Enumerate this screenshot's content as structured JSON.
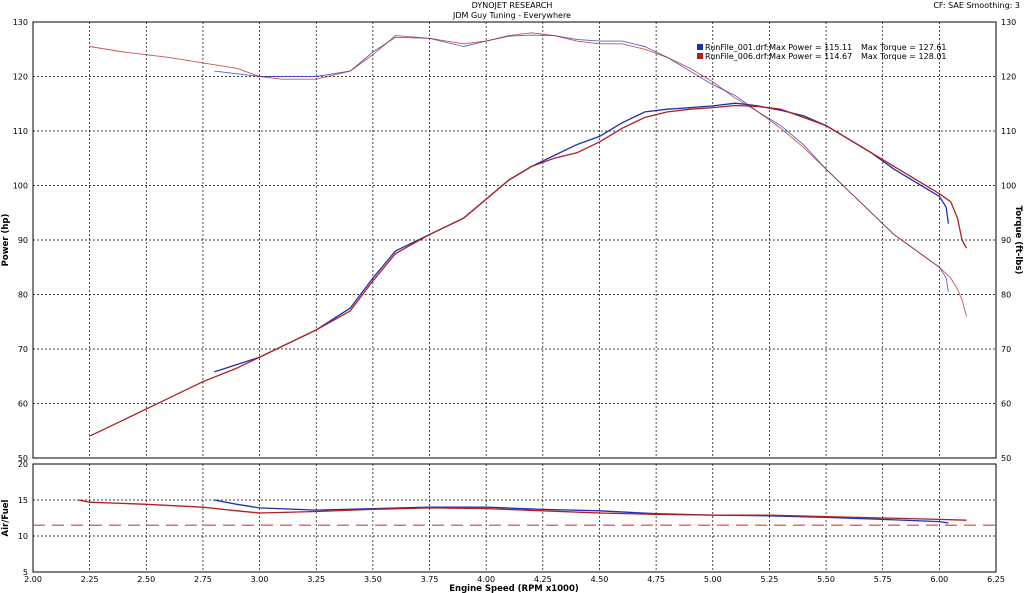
{
  "header": {
    "title": "DYNOJET RESEARCH",
    "subtitle": "JDM Guy Tuning - Everywhere",
    "meta": "CF: SAE  Smoothing: 3"
  },
  "legend": [
    {
      "text": "RunFile_001.drf:Max Power = 115.11",
      "torque_text": "Max Torque = 127.61",
      "color": "#1f2fb0"
    },
    {
      "text": "RunFile_006.drf:Max Power = 114.67",
      "torque_text": "Max Torque = 128.01",
      "color": "#b01f1f"
    }
  ],
  "chart_data": [
    {
      "type": "line",
      "title": "DYNOJET RESEARCH",
      "subtitle": "JDM Guy Tuning - Everywhere",
      "xlabel": "Engine Speed (RPM x1000)",
      "ylabel": "Power (hp)",
      "y2label": "Torque (ft-lbs)",
      "xlim": [
        2.0,
        6.25
      ],
      "ylim": [
        50,
        130
      ],
      "y2lim": [
        50,
        130
      ],
      "x_ticks": [
        "2.00",
        "2.25",
        "2.50",
        "2.75",
        "3.00",
        "3.25",
        "3.50",
        "3.75",
        "4.00",
        "4.25",
        "4.50",
        "4.75",
        "5.00",
        "5.25",
        "5.50",
        "5.75",
        "6.00",
        "6.25"
      ],
      "y_ticks": [
        "50",
        "60",
        "70",
        "80",
        "90",
        "100",
        "110",
        "120",
        "130"
      ],
      "y2_ticks": [
        "50",
        "60",
        "70",
        "80",
        "90",
        "100",
        "110",
        "120",
        "130"
      ],
      "grid": true,
      "legend_position": "top-right",
      "series": [
        {
          "name": "RunFile_001.drf",
          "quantity": "power",
          "color": "#1f2fb0",
          "x": [
            2.8,
            3.0,
            3.25,
            3.4,
            3.5,
            3.6,
            3.75,
            3.9,
            4.0,
            4.1,
            4.2,
            4.3,
            4.4,
            4.5,
            4.6,
            4.7,
            4.8,
            4.9,
            5.0,
            5.1,
            5.2,
            5.3,
            5.4,
            5.5,
            5.6,
            5.7,
            5.8,
            5.9,
            6.0,
            6.03,
            6.04
          ],
          "y": [
            65.8,
            68.5,
            73.5,
            77.5,
            83.0,
            88.0,
            91.0,
            94.0,
            97.5,
            101.0,
            103.5,
            105.5,
            107.5,
            109.0,
            111.5,
            113.5,
            114.0,
            114.3,
            114.6,
            115.1,
            114.6,
            113.8,
            112.8,
            111.0,
            108.5,
            106.0,
            103.0,
            100.5,
            98.0,
            96.0,
            93.0
          ]
        },
        {
          "name": "RunFile_006.drf",
          "quantity": "power",
          "color": "#b01f1f",
          "x": [
            2.25,
            2.4,
            2.5,
            2.6,
            2.75,
            2.9,
            3.0,
            3.25,
            3.4,
            3.5,
            3.6,
            3.75,
            3.9,
            4.0,
            4.1,
            4.2,
            4.3,
            4.4,
            4.5,
            4.6,
            4.7,
            4.8,
            4.9,
            5.0,
            5.1,
            5.2,
            5.3,
            5.4,
            5.5,
            5.6,
            5.7,
            5.8,
            5.9,
            6.0,
            6.05,
            6.08,
            6.1,
            6.12
          ],
          "y": [
            54.0,
            57.0,
            59.0,
            61.0,
            64.0,
            66.5,
            68.5,
            73.5,
            77.0,
            82.5,
            87.5,
            91.0,
            94.0,
            97.5,
            101.0,
            103.5,
            105.0,
            106.0,
            108.0,
            110.5,
            112.5,
            113.5,
            114.0,
            114.3,
            114.67,
            114.5,
            114.0,
            112.5,
            111.0,
            108.5,
            106.0,
            103.5,
            101.0,
            98.5,
            97.0,
            94.0,
            90.0,
            88.5
          ]
        },
        {
          "name": "RunFile_001.drf",
          "quantity": "torque",
          "color": "#1f2fb0",
          "x": [
            2.8,
            3.0,
            3.25,
            3.4,
            3.5,
            3.6,
            3.75,
            3.9,
            4.0,
            4.1,
            4.2,
            4.3,
            4.4,
            4.5,
            4.6,
            4.7,
            4.8,
            4.9,
            5.0,
            5.1,
            5.2,
            5.3,
            5.4,
            5.5,
            5.6,
            5.7,
            5.8,
            5.9,
            6.0,
            6.03,
            6.04
          ],
          "y": [
            121.0,
            120.0,
            120.0,
            121.0,
            124.5,
            127.2,
            127.0,
            125.5,
            126.5,
            127.4,
            127.6,
            127.5,
            126.8,
            126.5,
            126.5,
            125.5,
            123.5,
            121.0,
            118.5,
            116.5,
            113.5,
            111.0,
            107.5,
            103.0,
            99.0,
            95.0,
            91.0,
            88.0,
            85.0,
            83.0,
            80.5
          ]
        },
        {
          "name": "RunFile_006.drf",
          "quantity": "torque",
          "color": "#b01f1f",
          "x": [
            2.25,
            2.4,
            2.5,
            2.6,
            2.75,
            2.9,
            3.0,
            3.1,
            3.25,
            3.4,
            3.5,
            3.6,
            3.75,
            3.9,
            4.0,
            4.1,
            4.2,
            4.3,
            4.4,
            4.5,
            4.6,
            4.7,
            4.8,
            4.9,
            5.0,
            5.1,
            5.2,
            5.3,
            5.4,
            5.5,
            5.6,
            5.7,
            5.8,
            5.9,
            6.0,
            6.05,
            6.08,
            6.1,
            6.12
          ],
          "y": [
            125.5,
            124.5,
            124.0,
            123.5,
            122.5,
            121.5,
            120.0,
            119.5,
            119.5,
            121.0,
            124.0,
            127.5,
            127.0,
            126.0,
            126.5,
            127.5,
            128.01,
            127.5,
            126.5,
            126.0,
            126.0,
            125.0,
            123.5,
            121.5,
            119.0,
            116.0,
            113.5,
            110.5,
            107.0,
            103.0,
            99.0,
            95.0,
            91.0,
            88.0,
            85.0,
            83.0,
            81.0,
            79.0,
            76.0
          ]
        }
      ]
    },
    {
      "type": "line",
      "ylabel": "Air/Fuel",
      "xlabel": "Engine Speed (RPM x1000)",
      "xlim": [
        2.0,
        6.25
      ],
      "ylim": [
        5,
        20
      ],
      "y_ticks": [
        "5",
        "10",
        "15",
        "20"
      ],
      "grid": true,
      "reference_line": {
        "y": 11.5,
        "color": "#d04040",
        "style": "dashed"
      },
      "series": [
        {
          "name": "RunFile_001.drf",
          "quantity": "air_fuel",
          "color": "#1f2fb0",
          "x": [
            2.8,
            2.9,
            3.0,
            3.25,
            3.5,
            3.75,
            4.0,
            4.25,
            4.5,
            4.75,
            5.0,
            5.25,
            5.5,
            5.75,
            6.0,
            6.04
          ],
          "y": [
            15.0,
            14.4,
            13.9,
            13.6,
            13.8,
            14.0,
            14.0,
            13.7,
            13.5,
            13.1,
            12.9,
            12.8,
            12.6,
            12.3,
            12.0,
            11.8
          ]
        },
        {
          "name": "RunFile_006.drf",
          "quantity": "air_fuel",
          "color": "#b01f1f",
          "x": [
            2.2,
            2.25,
            2.5,
            2.75,
            2.9,
            3.0,
            3.25,
            3.5,
            3.75,
            4.0,
            4.25,
            4.5,
            4.75,
            5.0,
            5.25,
            5.5,
            5.75,
            6.0,
            6.12
          ],
          "y": [
            15.0,
            14.7,
            14.4,
            14.0,
            13.5,
            13.2,
            13.4,
            13.7,
            13.9,
            13.8,
            13.5,
            13.2,
            13.0,
            12.9,
            12.9,
            12.7,
            12.5,
            12.3,
            12.2
          ]
        }
      ]
    }
  ]
}
